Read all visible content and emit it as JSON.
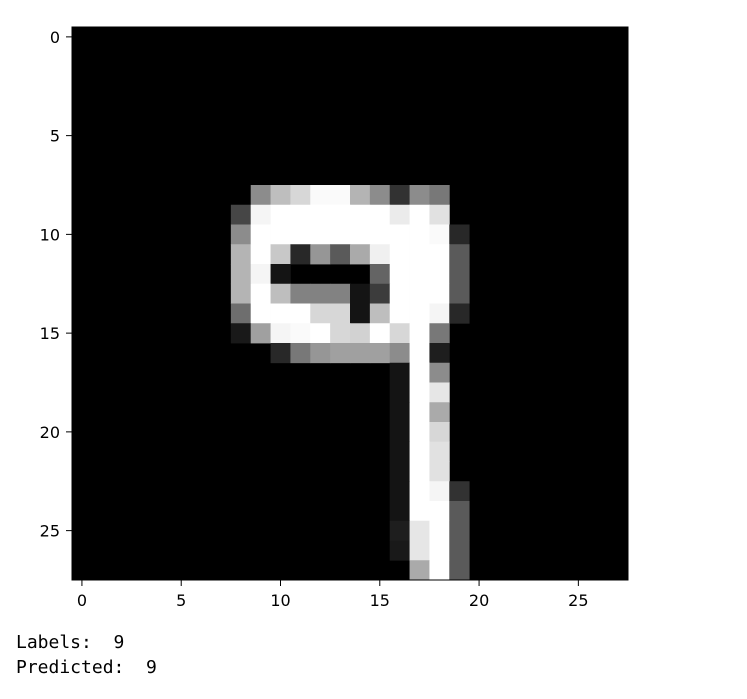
{
  "chart_data": {
    "type": "heatmap",
    "colormap": "gray",
    "title": "",
    "xlabel": "",
    "ylabel": "",
    "xlim": [
      -0.5,
      27.5
    ],
    "ylim": [
      27.5,
      -0.5
    ],
    "x_ticks": [
      0,
      5,
      10,
      15,
      20,
      25
    ],
    "y_ticks": [
      0,
      5,
      10,
      15,
      20,
      25
    ],
    "x_tick_labels": [
      "0",
      "5",
      "10",
      "15",
      "20",
      "25"
    ],
    "y_tick_labels": [
      "0",
      "5",
      "10",
      "15",
      "20",
      "25"
    ],
    "grid": false,
    "pixels": [
      [
        0,
        0,
        0,
        0,
        0,
        0,
        0,
        0,
        0,
        0,
        0,
        0,
        0,
        0,
        0,
        0,
        0,
        0,
        0,
        0,
        0,
        0,
        0,
        0,
        0,
        0,
        0,
        0
      ],
      [
        0,
        0,
        0,
        0,
        0,
        0,
        0,
        0,
        0,
        0,
        0,
        0,
        0,
        0,
        0,
        0,
        0,
        0,
        0,
        0,
        0,
        0,
        0,
        0,
        0,
        0,
        0,
        0
      ],
      [
        0,
        0,
        0,
        0,
        0,
        0,
        0,
        0,
        0,
        0,
        0,
        0,
        0,
        0,
        0,
        0,
        0,
        0,
        0,
        0,
        0,
        0,
        0,
        0,
        0,
        0,
        0,
        0
      ],
      [
        0,
        0,
        0,
        0,
        0,
        0,
        0,
        0,
        0,
        0,
        0,
        0,
        0,
        0,
        0,
        0,
        0,
        0,
        0,
        0,
        0,
        0,
        0,
        0,
        0,
        0,
        0,
        0
      ],
      [
        0,
        0,
        0,
        0,
        0,
        0,
        0,
        0,
        0,
        0,
        0,
        0,
        0,
        0,
        0,
        0,
        0,
        0,
        0,
        0,
        0,
        0,
        0,
        0,
        0,
        0,
        0,
        0
      ],
      [
        0,
        0,
        0,
        0,
        0,
        0,
        0,
        0,
        0,
        0,
        0,
        0,
        0,
        0,
        0,
        0,
        0,
        0,
        0,
        0,
        0,
        0,
        0,
        0,
        0,
        0,
        0,
        0
      ],
      [
        0,
        0,
        0,
        0,
        0,
        0,
        0,
        0,
        0,
        0,
        0,
        0,
        0,
        0,
        0,
        0,
        0,
        0,
        0,
        0,
        0,
        0,
        0,
        0,
        0,
        0,
        0,
        0
      ],
      [
        0,
        0,
        0,
        0,
        0,
        0,
        0,
        0,
        0,
        0,
        0,
        0,
        0,
        0,
        0,
        0,
        0,
        0,
        0,
        0,
        0,
        0,
        0,
        0,
        0,
        0,
        0,
        0
      ],
      [
        0,
        0,
        0,
        0,
        0,
        0,
        0,
        0,
        0,
        140,
        190,
        215,
        250,
        250,
        180,
        140,
        50,
        140,
        120,
        0,
        0,
        0,
        0,
        0,
        0,
        0,
        0,
        0
      ],
      [
        0,
        0,
        0,
        0,
        0,
        0,
        0,
        0,
        70,
        245,
        255,
        255,
        255,
        255,
        255,
        255,
        235,
        255,
        225,
        0,
        0,
        0,
        0,
        0,
        0,
        0,
        0,
        0
      ],
      [
        0,
        0,
        0,
        0,
        0,
        0,
        0,
        0,
        140,
        255,
        255,
        255,
        255,
        255,
        255,
        255,
        255,
        255,
        250,
        40,
        0,
        0,
        0,
        0,
        0,
        0,
        0,
        0
      ],
      [
        0,
        0,
        0,
        0,
        0,
        0,
        0,
        0,
        180,
        255,
        200,
        40,
        150,
        90,
        170,
        240,
        255,
        255,
        255,
        90,
        0,
        0,
        0,
        0,
        0,
        0,
        0,
        0
      ],
      [
        0,
        0,
        0,
        0,
        0,
        0,
        0,
        0,
        180,
        245,
        20,
        0,
        0,
        0,
        0,
        100,
        255,
        255,
        255,
        90,
        0,
        0,
        0,
        0,
        0,
        0,
        0,
        0
      ],
      [
        0,
        0,
        0,
        0,
        0,
        0,
        0,
        0,
        180,
        255,
        190,
        130,
        130,
        130,
        20,
        60,
        255,
        255,
        255,
        90,
        0,
        0,
        0,
        0,
        0,
        0,
        0,
        0
      ],
      [
        0,
        0,
        0,
        0,
        0,
        0,
        0,
        0,
        110,
        255,
        255,
        255,
        215,
        215,
        20,
        190,
        255,
        255,
        245,
        40,
        0,
        0,
        0,
        0,
        0,
        0,
        0,
        0
      ],
      [
        0,
        0,
        0,
        0,
        0,
        0,
        0,
        0,
        25,
        160,
        245,
        250,
        255,
        215,
        210,
        255,
        215,
        255,
        120,
        0,
        0,
        0,
        0,
        0,
        0,
        0,
        0,
        0
      ],
      [
        0,
        0,
        0,
        0,
        0,
        0,
        0,
        0,
        0,
        0,
        40,
        120,
        150,
        160,
        160,
        160,
        140,
        255,
        30,
        0,
        0,
        0,
        0,
        0,
        0,
        0,
        0,
        0
      ],
      [
        0,
        0,
        0,
        0,
        0,
        0,
        0,
        0,
        0,
        0,
        0,
        0,
        0,
        0,
        0,
        0,
        20,
        255,
        140,
        0,
        0,
        0,
        0,
        0,
        0,
        0,
        0,
        0
      ],
      [
        0,
        0,
        0,
        0,
        0,
        0,
        0,
        0,
        0,
        0,
        0,
        0,
        0,
        0,
        0,
        0,
        20,
        255,
        230,
        0,
        0,
        0,
        0,
        0,
        0,
        0,
        0,
        0
      ],
      [
        0,
        0,
        0,
        0,
        0,
        0,
        0,
        0,
        0,
        0,
        0,
        0,
        0,
        0,
        0,
        0,
        20,
        255,
        170,
        0,
        0,
        0,
        0,
        0,
        0,
        0,
        0,
        0
      ],
      [
        0,
        0,
        0,
        0,
        0,
        0,
        0,
        0,
        0,
        0,
        0,
        0,
        0,
        0,
        0,
        0,
        20,
        255,
        215,
        0,
        0,
        0,
        0,
        0,
        0,
        0,
        0,
        0
      ],
      [
        0,
        0,
        0,
        0,
        0,
        0,
        0,
        0,
        0,
        0,
        0,
        0,
        0,
        0,
        0,
        0,
        20,
        255,
        225,
        0,
        0,
        0,
        0,
        0,
        0,
        0,
        0,
        0
      ],
      [
        0,
        0,
        0,
        0,
        0,
        0,
        0,
        0,
        0,
        0,
        0,
        0,
        0,
        0,
        0,
        0,
        20,
        255,
        225,
        0,
        0,
        0,
        0,
        0,
        0,
        0,
        0,
        0
      ],
      [
        0,
        0,
        0,
        0,
        0,
        0,
        0,
        0,
        0,
        0,
        0,
        0,
        0,
        0,
        0,
        0,
        20,
        255,
        245,
        50,
        0,
        0,
        0,
        0,
        0,
        0,
        0,
        0
      ],
      [
        0,
        0,
        0,
        0,
        0,
        0,
        0,
        0,
        0,
        0,
        0,
        0,
        0,
        0,
        0,
        0,
        20,
        255,
        255,
        90,
        0,
        0,
        0,
        0,
        0,
        0,
        0,
        0
      ],
      [
        0,
        0,
        0,
        0,
        0,
        0,
        0,
        0,
        0,
        0,
        0,
        0,
        0,
        0,
        0,
        0,
        30,
        230,
        255,
        90,
        0,
        0,
        0,
        0,
        0,
        0,
        0,
        0
      ],
      [
        0,
        0,
        0,
        0,
        0,
        0,
        0,
        0,
        0,
        0,
        0,
        0,
        0,
        0,
        0,
        0,
        25,
        230,
        255,
        90,
        0,
        0,
        0,
        0,
        0,
        0,
        0,
        0
      ],
      [
        0,
        0,
        0,
        0,
        0,
        0,
        0,
        0,
        0,
        0,
        0,
        0,
        0,
        0,
        0,
        0,
        0,
        170,
        255,
        90,
        0,
        0,
        0,
        0,
        0,
        0,
        0,
        0
      ]
    ]
  },
  "output": {
    "labels": "Labels:  9",
    "predicted": "Predicted:  9"
  }
}
